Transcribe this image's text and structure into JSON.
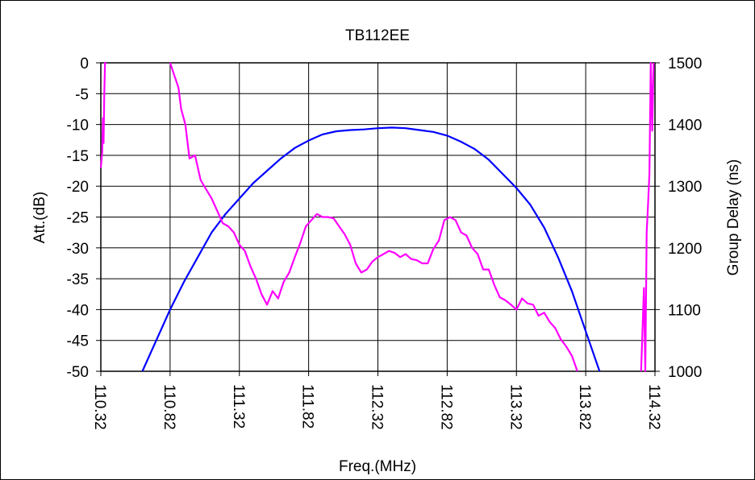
{
  "chart_data": {
    "type": "line",
    "title": "TB112EE",
    "xlabel": "Freq.(MHz)",
    "ylabel_left": "Att.(dB)",
    "ylabel_right": "Group Delay (ns)",
    "x_ticks": [
      "110.32",
      "110.82",
      "111.32",
      "111.82",
      "112.32",
      "112.82",
      "113.32",
      "113.82",
      "114.32"
    ],
    "xlim": [
      110.32,
      114.32
    ],
    "y_left_ticks": [
      "0",
      "-5",
      "-10",
      "-15",
      "-20",
      "-25",
      "-30",
      "-35",
      "-40",
      "-45",
      "-50"
    ],
    "ylim_left": [
      -50,
      0
    ],
    "y_right_ticks": [
      "1500",
      "1400",
      "1300",
      "1200",
      "1100",
      "1000"
    ],
    "ylim_right": [
      1000,
      1500
    ],
    "grid": true,
    "colors": {
      "attenuation": "#0000ff",
      "group_delay": "#ff00ff"
    },
    "series": [
      {
        "axis": "left",
        "x": [
          110.62,
          110.72,
          110.82,
          110.92,
          111.02,
          111.12,
          111.22,
          111.32,
          111.42,
          111.52,
          111.62,
          111.72,
          111.82,
          111.92,
          112.02,
          112.12,
          112.22,
          112.32,
          112.42,
          112.52,
          112.62,
          112.72,
          112.82,
          112.92,
          113.02,
          113.12,
          113.22,
          113.32,
          113.42,
          113.52,
          113.62,
          113.72,
          113.82,
          113.92
        ],
        "y": [
          -50,
          -45,
          -40,
          -35.5,
          -31.5,
          -27.5,
          -24.5,
          -22,
          -19.5,
          -17.5,
          -15.5,
          -13.8,
          -12.6,
          -11.6,
          -11.1,
          -10.9,
          -10.8,
          -10.6,
          -10.5,
          -10.6,
          -10.9,
          -11.2,
          -11.8,
          -12.8,
          -14,
          -15.7,
          -18,
          -20.3,
          -23,
          -26.7,
          -31.5,
          -37,
          -43.5,
          -50
        ]
      },
      {
        "axis": "right",
        "segments": [
          {
            "x": [
              110.32,
              110.33,
              110.335,
              110.34,
              110.345,
              110.35,
              110.36
            ],
            "y": [
              1330,
              1355,
              1410,
              1370,
              1450,
              1500,
              1500
            ]
          },
          {
            "x": [
              110.82,
              110.85,
              110.88,
              110.9,
              110.93,
              110.96,
              111.0,
              111.04,
              111.08,
              111.12,
              111.16,
              111.2,
              111.24,
              111.28,
              111.32,
              111.36,
              111.4,
              111.44,
              111.48,
              111.52,
              111.56,
              111.6,
              111.64,
              111.68,
              111.72,
              111.76,
              111.8,
              111.84,
              111.88,
              111.92,
              111.96,
              112.0,
              112.04,
              112.08,
              112.12,
              112.16,
              112.2,
              112.24,
              112.28,
              112.32,
              112.36,
              112.4,
              112.44,
              112.48,
              112.52,
              112.56,
              112.6,
              112.64,
              112.68,
              112.72,
              112.76,
              112.8,
              112.84,
              112.88,
              112.92,
              112.96,
              113.0,
              113.04,
              113.08,
              113.12,
              113.16,
              113.2,
              113.24,
              113.28,
              113.32,
              113.36,
              113.4,
              113.44,
              113.48,
              113.52,
              113.56,
              113.6,
              113.64,
              113.68,
              113.72,
              113.76
            ],
            "y": [
              1500,
              1480,
              1460,
              1425,
              1400,
              1345,
              1350,
              1310,
              1295,
              1280,
              1260,
              1240,
              1235,
              1225,
              1205,
              1195,
              1170,
              1150,
              1125,
              1108,
              1130,
              1118,
              1145,
              1160,
              1185,
              1208,
              1235,
              1245,
              1255,
              1250,
              1250,
              1248,
              1235,
              1222,
              1205,
              1175,
              1160,
              1165,
              1178,
              1185,
              1190,
              1195,
              1192,
              1185,
              1190,
              1182,
              1180,
              1175,
              1175,
              1198,
              1212,
              1245,
              1250,
              1245,
              1225,
              1220,
              1200,
              1190,
              1165,
              1165,
              1140,
              1120,
              1115,
              1108,
              1100,
              1118,
              1110,
              1108,
              1090,
              1095,
              1080,
              1070,
              1052,
              1040,
              1025,
              1000
            ]
          },
          {
            "x": [
              114.22,
              114.24,
              114.25,
              114.26,
              114.27,
              114.28,
              114.29,
              114.3,
              114.31
            ],
            "y": [
              1000,
              1135,
              1000,
              1225,
              1270,
              1320,
              1500,
              1390,
              1500
            ]
          }
        ]
      }
    ]
  }
}
